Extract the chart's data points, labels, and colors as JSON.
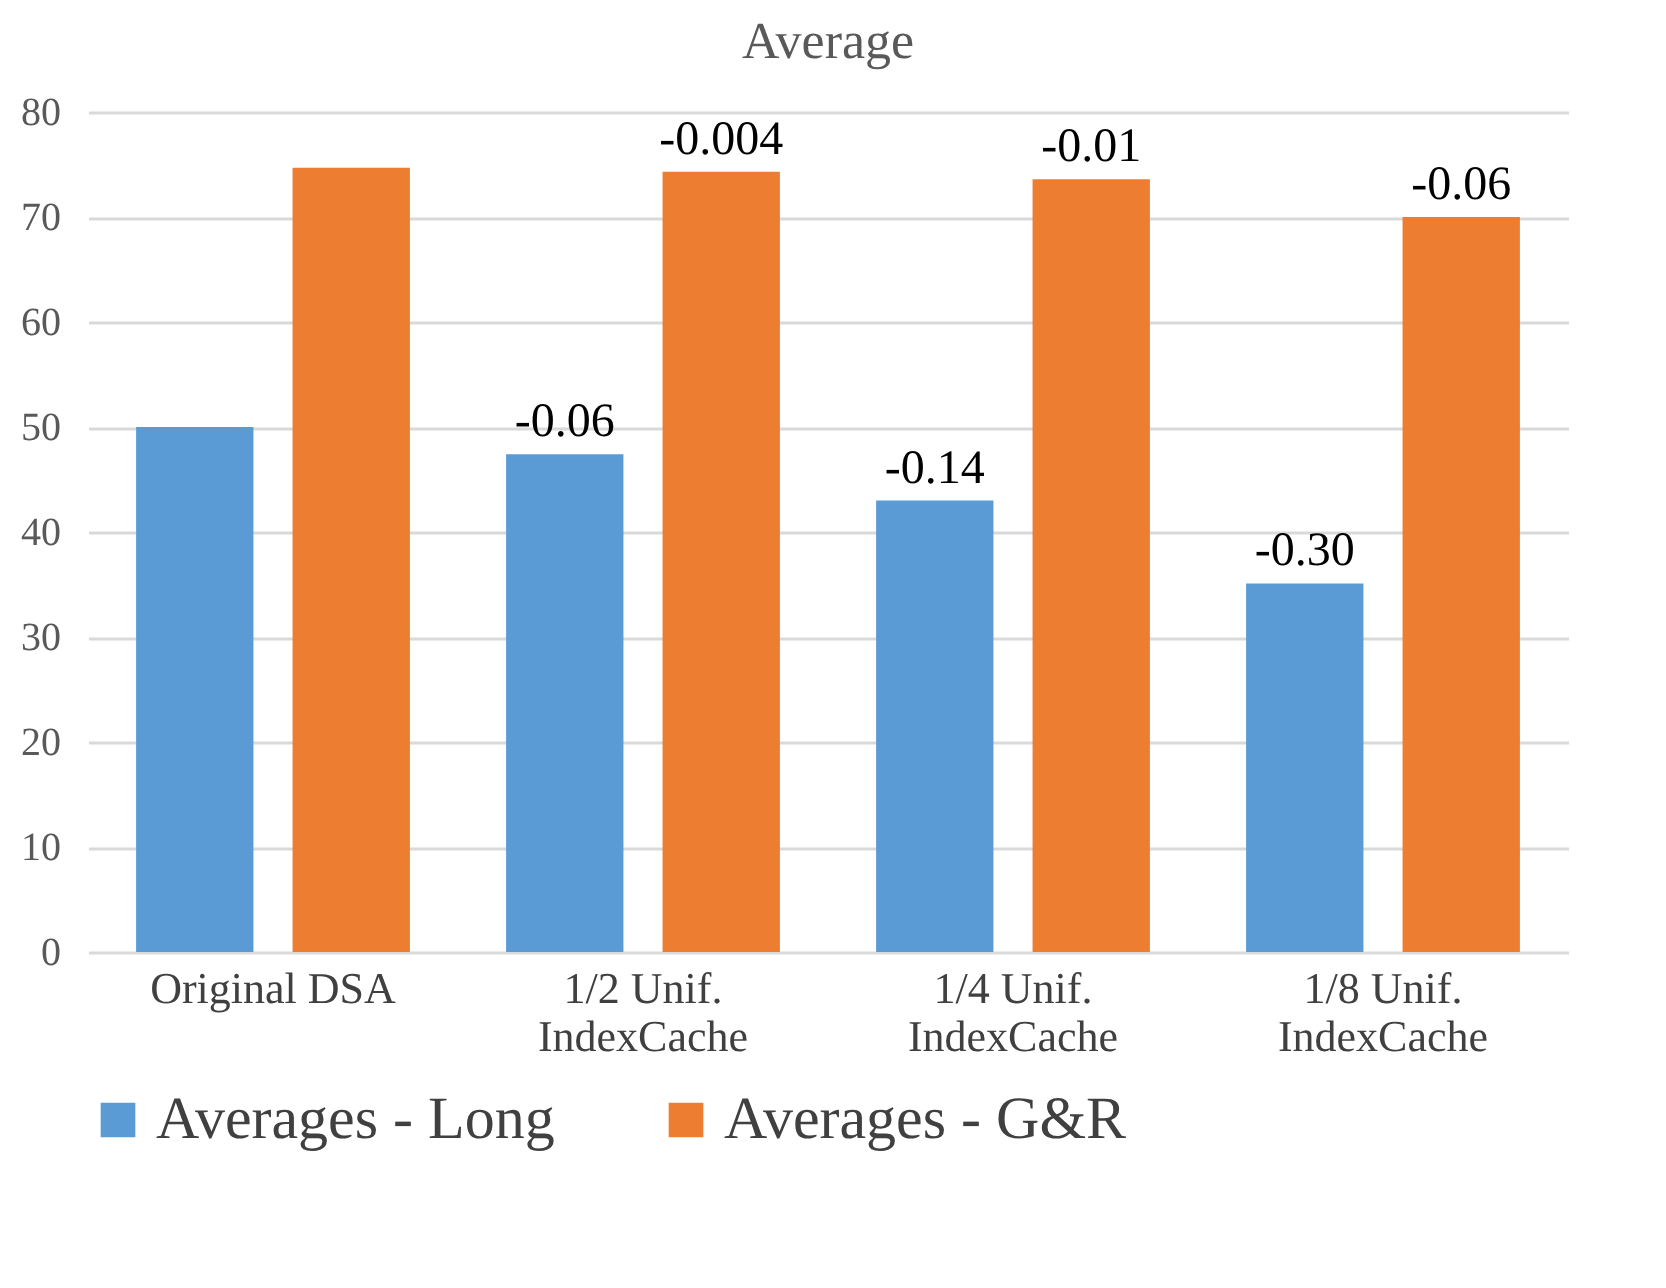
{
  "chart_data": {
    "type": "bar",
    "title": "Average",
    "categories": [
      "Original DSA",
      "1/2 Unif.\nIndexCache",
      "1/4 Unif.\nIndexCache",
      "1/8 Unif.\nIndexCache"
    ],
    "series": [
      {
        "name": "Averages - Long",
        "color": "#5b9bd5",
        "values": [
          50.0,
          47.4,
          43.0,
          35.1
        ]
      },
      {
        "name": "Averages - G&R",
        "color": "#ed7d31",
        "values": [
          74.7,
          74.3,
          73.6,
          70.0
        ]
      }
    ],
    "annotations": [
      "-0.06",
      "-0.14",
      "-0.30",
      "-0.004",
      "-0.01",
      "-0.06"
    ],
    "ylim": [
      0,
      80
    ],
    "yticks": [
      0,
      10,
      20,
      30,
      40,
      50,
      60,
      70,
      80
    ],
    "grid": "y",
    "legend": "bottom"
  }
}
